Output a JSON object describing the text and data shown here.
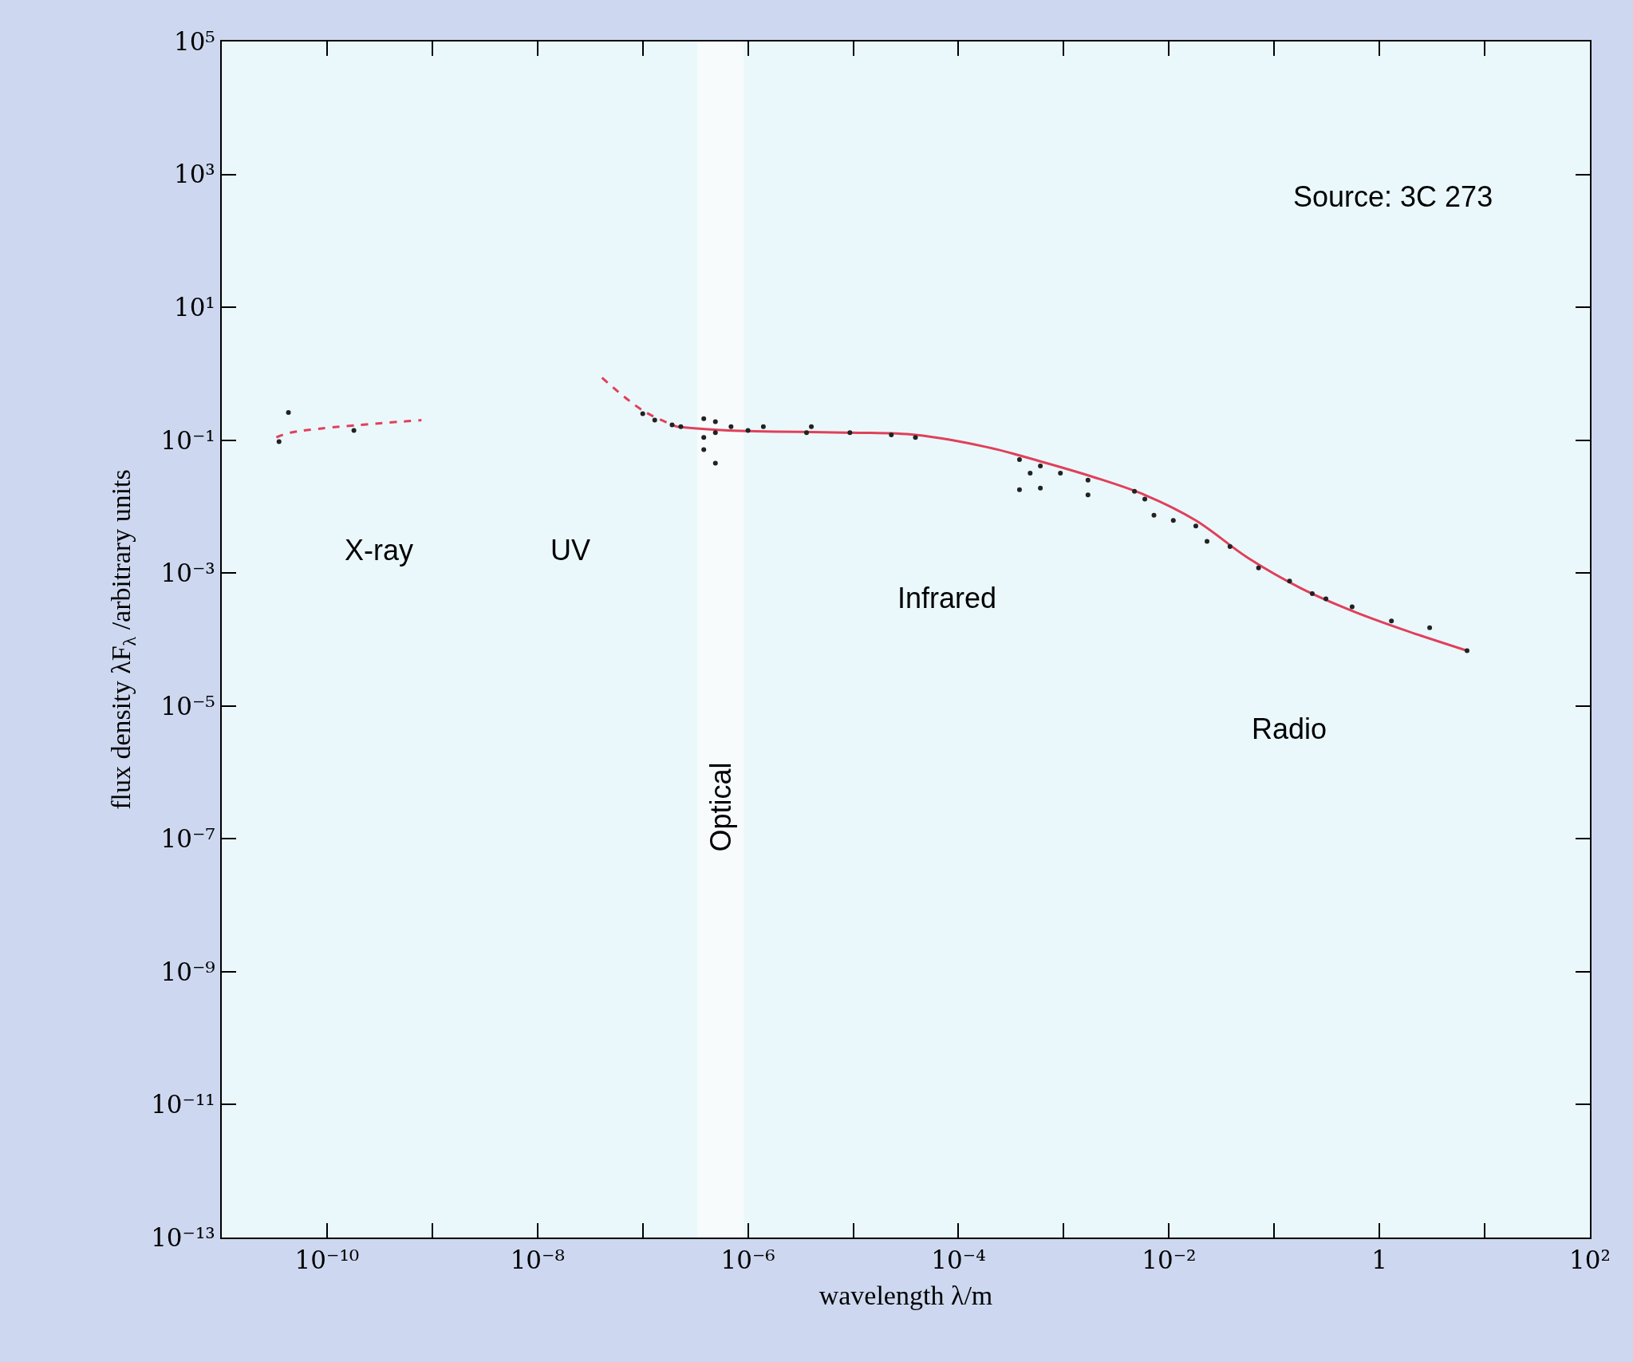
{
  "chart_data": {
    "type": "scatter",
    "xlabel": "wavelength λ/m",
    "ylabel": "flux density λF$_{λ}$ /arbitrary units",
    "log": "xy",
    "xlim": [
      1e-11,
      100
    ],
    "ylim": [
      1e-13,
      100000
    ],
    "xticks": [
      {
        "value": 1e-10,
        "label": "10⁻¹⁰"
      },
      {
        "value": 1e-08,
        "label": "10⁻⁸"
      },
      {
        "value": 1e-06,
        "label": "10⁻⁶"
      },
      {
        "value": 0.0001,
        "label": "10⁻⁴"
      },
      {
        "value": 0.01,
        "label": "10⁻²"
      },
      1,
      {
        "value": 100,
        "label": "10²"
      }
    ],
    "yticks": [
      {
        "value": 1e-13,
        "label": "10⁻¹³"
      },
      {
        "value": 1e-11,
        "label": "10⁻¹¹"
      },
      {
        "value": 1e-09,
        "label": "10⁻⁹"
      },
      {
        "value": 1e-07,
        "label": "10⁻⁷"
      },
      {
        "value": 1e-05,
        "label": "10⁻⁵"
      },
      {
        "value": 0.001,
        "label": "10⁻³"
      },
      {
        "value": 0.1,
        "label": "10⁻¹"
      },
      {
        "value": 10,
        "label": "10¹"
      },
      {
        "value": 1000,
        "label": "10³"
      },
      {
        "value": 100000,
        "label": "10⁵"
      }
    ],
    "grid": false,
    "bands": [
      {
        "axis": "x",
        "from": 3.3e-07,
        "to": 9.1e-07,
        "label": "Optical",
        "color": "#f7fbfc"
      }
    ],
    "annotations": [
      "Source: 3C 273",
      "X-ray",
      "UV",
      "Infrared",
      "Radio"
    ],
    "series": [
      {
        "type": "line",
        "color": "#e0405a",
        "line_style": "dashed",
        "marker": "none",
        "x": [
          3.3e-11,
          4.5e-11,
          7.9e-10
        ],
        "values": [
          0.11,
          0.13,
          0.2
        ]
      },
      {
        "type": "line",
        "color": "#e0405a",
        "line_style": "dashed",
        "marker": "none",
        "x": [
          4.1e-08,
          1e-07,
          2.1e-07
        ],
        "values": [
          0.87,
          0.28,
          0.16
        ]
      },
      {
        "type": "line",
        "color": "#e0405a",
        "line_style": "solid",
        "marker": "none",
        "x": [
          2.1e-07,
          6.5e-07,
          9.3e-06,
          3.9e-05,
          0.00019,
          0.0006,
          0.0019,
          0.0059,
          0.018,
          0.056,
          0.18,
          0.55,
          1.7,
          6.8
        ],
        "values": [
          0.16,
          0.14,
          0.13,
          0.12,
          0.078,
          0.048,
          0.028,
          0.015,
          0.0062,
          0.0017,
          0.00059,
          0.00027,
          0.00014,
          6.8e-05
        ]
      },
      {
        "color": "#222222",
        "marker": "circle",
        "x": [
          3.5e-11,
          4.3e-11,
          1.8e-10,
          1e-07,
          1.3e-07,
          1.9e-07,
          2.3e-07,
          3.8e-07,
          3.8e-07,
          3.8e-07,
          4.9e-07,
          4.9e-07,
          4.9e-07,
          6.9e-07,
          1e-06,
          1.4e-06,
          3.6e-06,
          4e-06,
          9.3e-06,
          2.3e-05,
          3.9e-05,
          0.00038,
          0.00038,
          0.00048,
          0.0006,
          0.0006,
          0.00093,
          0.0017,
          0.0017,
          0.0047,
          0.0059,
          0.0072,
          0.011,
          0.018,
          0.023,
          0.038,
          0.071,
          0.14,
          0.23,
          0.31,
          0.55,
          1.3,
          3.0,
          6.8
        ],
        "values": [
          0.095,
          0.26,
          0.14,
          0.25,
          0.2,
          0.17,
          0.16,
          0.21,
          0.11,
          0.072,
          0.19,
          0.13,
          0.045,
          0.16,
          0.14,
          0.16,
          0.13,
          0.16,
          0.13,
          0.12,
          0.11,
          0.051,
          0.018,
          0.032,
          0.041,
          0.019,
          0.032,
          0.025,
          0.015,
          0.017,
          0.013,
          0.0074,
          0.0062,
          0.0051,
          0.003,
          0.0025,
          0.0012,
          0.00076,
          0.00049,
          0.00041,
          0.00031,
          0.00019,
          0.00015,
          6.8e-05
        ]
      }
    ]
  }
}
